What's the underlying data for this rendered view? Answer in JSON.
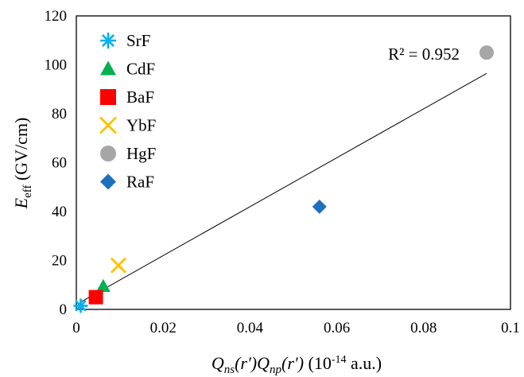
{
  "chart_data": {
    "type": "scatter",
    "xlabel": {
      "q1": "Q",
      "q1_sub": "ns",
      "r1": "(r′)",
      "q2": "Q",
      "q2_sub": "np",
      "r2": "(r′)",
      "unit_open": "(10",
      "unit_exp": "-14",
      "unit_close": " a.u.)"
    },
    "ylabel": {
      "main": "E",
      "sub": "eff",
      "unit": " (GV/cm)"
    },
    "xlim": [
      0,
      0.1
    ],
    "ylim": [
      0,
      120
    ],
    "xticks": [
      "0",
      "0.02",
      "0.04",
      "0.06",
      "0.08",
      "0.1"
    ],
    "yticks": [
      "0",
      "20",
      "40",
      "60",
      "80",
      "100",
      "120"
    ],
    "legend_position": "top-left",
    "series": [
      {
        "name": "SrF",
        "marker": "asterisk",
        "color": "#00B0F0",
        "x": 0.001,
        "y": 1.5
      },
      {
        "name": "CdF",
        "marker": "triangle",
        "color": "#00B050",
        "x": 0.0062,
        "y": 9.5
      },
      {
        "name": "BaF",
        "marker": "square",
        "color": "#FF0000",
        "x": 0.0045,
        "y": 5
      },
      {
        "name": "YbF",
        "marker": "x",
        "color": "#FFC000",
        "x": 0.0097,
        "y": 18
      },
      {
        "name": "HgF",
        "marker": "circle",
        "color": "#A6A6A6",
        "x": 0.0945,
        "y": 105
      },
      {
        "name": "RaF",
        "marker": "diamond",
        "color": "#1F6FC0",
        "x": 0.056,
        "y": 42
      }
    ],
    "trendline": {
      "x": [
        0.001,
        0.0945
      ],
      "y": [
        3.0,
        96.5
      ],
      "r2_label": "R² = 0.952"
    }
  }
}
